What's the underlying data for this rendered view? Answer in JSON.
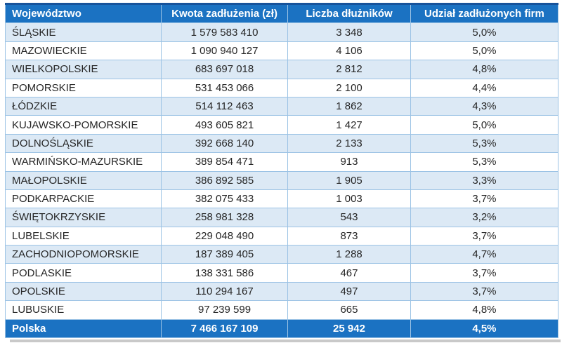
{
  "table": {
    "headers": {
      "region": "Województwo",
      "amount": "Kwota zadłużenia (zł)",
      "debtors": "Liczba dłużników",
      "share": "Udział zadłużonych firm"
    },
    "rows": [
      {
        "region": "ŚLĄSKIE",
        "amount": "1 579 583 410",
        "debtors": "3 348",
        "share": "5,0%"
      },
      {
        "region": "MAZOWIECKIE",
        "amount": "1 090 940 127",
        "debtors": "4 106",
        "share": "5,0%"
      },
      {
        "region": "WIELKOPOLSKIE",
        "amount": "683 697 018",
        "debtors": "2 812",
        "share": "4,8%"
      },
      {
        "region": "POMORSKIE",
        "amount": "531 453 066",
        "debtors": "2 100",
        "share": "4,4%"
      },
      {
        "region": "ŁÓDZKIE",
        "amount": "514 112 463",
        "debtors": "1 862",
        "share": "4,3%"
      },
      {
        "region": "KUJAWSKO-POMORSKIE",
        "amount": "493 605 821",
        "debtors": "1 427",
        "share": "5,0%"
      },
      {
        "region": "DOLNOŚLĄSKIE",
        "amount": "392 668 140",
        "debtors": "2 133",
        "share": "5,3%"
      },
      {
        "region": "WARMIŃSKO-MAZURSKIE",
        "amount": "389 854 471",
        "debtors": "913",
        "share": "5,3%"
      },
      {
        "region": "MAŁOPOLSKIE",
        "amount": "386 892 585",
        "debtors": "1 905",
        "share": "3,3%"
      },
      {
        "region": "PODKARPACKIE",
        "amount": "382 075 433",
        "debtors": "1 003",
        "share": "3,7%"
      },
      {
        "region": "ŚWIĘTOKRZYSKIE",
        "amount": "258 981 328",
        "debtors": "543",
        "share": "3,2%"
      },
      {
        "region": "LUBELSKIE",
        "amount": "229 048 490",
        "debtors": "873",
        "share": "3,7%"
      },
      {
        "region": "ZACHODNIOPOMORSKIE",
        "amount": "187 389 405",
        "debtors": "1 288",
        "share": "4,7%"
      },
      {
        "region": "PODLASKIE",
        "amount": "138 331 586",
        "debtors": "467",
        "share": "3,7%"
      },
      {
        "region": "OPOLSKIE",
        "amount": "110 294 167",
        "debtors": "497",
        "share": "3,7%"
      },
      {
        "region": "LUBUSKIE",
        "amount": "97 239 599",
        "debtors": "665",
        "share": "4,8%"
      }
    ],
    "total": {
      "region": "Polska",
      "amount": "7 466 167 109",
      "debtors": "25 942",
      "share": "4,5%"
    }
  },
  "colors": {
    "header_bg": "#1B72C2",
    "total_bg": "#1B72C2",
    "band_bg": "#DCE9F5",
    "grid": "#9CC3E5",
    "top_border": "#17539B",
    "header_text": "#FFFFFF",
    "body_text": "#262626",
    "shadow": "#C9C9C9"
  },
  "chart_data": {
    "type": "table",
    "columns": [
      "Województwo",
      "Kwota zadłużenia (zł)",
      "Liczba dłużników",
      "Udział zadłużonych firm"
    ],
    "rows": [
      [
        "ŚLĄSKIE",
        1579583410,
        3348,
        "5,0%"
      ],
      [
        "MAZOWIECKIE",
        1090940127,
        4106,
        "5,0%"
      ],
      [
        "WIELKOPOLSKIE",
        683697018,
        2812,
        "4,8%"
      ],
      [
        "POMORSKIE",
        531453066,
        2100,
        "4,4%"
      ],
      [
        "ŁÓDZKIE",
        514112463,
        1862,
        "4,3%"
      ],
      [
        "KUJAWSKO-POMORSKIE",
        493605821,
        1427,
        "5,0%"
      ],
      [
        "DOLNOŚLĄSKIE",
        392668140,
        2133,
        "5,3%"
      ],
      [
        "WARMIŃSKO-MAZURSKIE",
        389854471,
        913,
        "5,3%"
      ],
      [
        "MAŁOPOLSKIE",
        386892585,
        1905,
        "3,3%"
      ],
      [
        "PODKARPACKIE",
        382075433,
        1003,
        "3,7%"
      ],
      [
        "ŚWIĘTOKRZYSKIE",
        258981328,
        543,
        "3,2%"
      ],
      [
        "LUBELSKIE",
        229048490,
        873,
        "3,7%"
      ],
      [
        "ZACHODNIOPOMORSKIE",
        187389405,
        1288,
        "4,7%"
      ],
      [
        "PODLASKIE",
        138331586,
        467,
        "3,7%"
      ],
      [
        "OPOLSKIE",
        110294167,
        497,
        "3,7%"
      ],
      [
        "LUBUSKIE",
        97239599,
        665,
        "4,8%"
      ]
    ],
    "total_row": [
      "Polska",
      7466167109,
      25942,
      "4,5%"
    ],
    "row_banding": "odd rows (1st,3rd,...) light blue #DCE9F5, even rows white",
    "notes": "amounts in PLN (zł); shares use Polish comma decimals"
  }
}
